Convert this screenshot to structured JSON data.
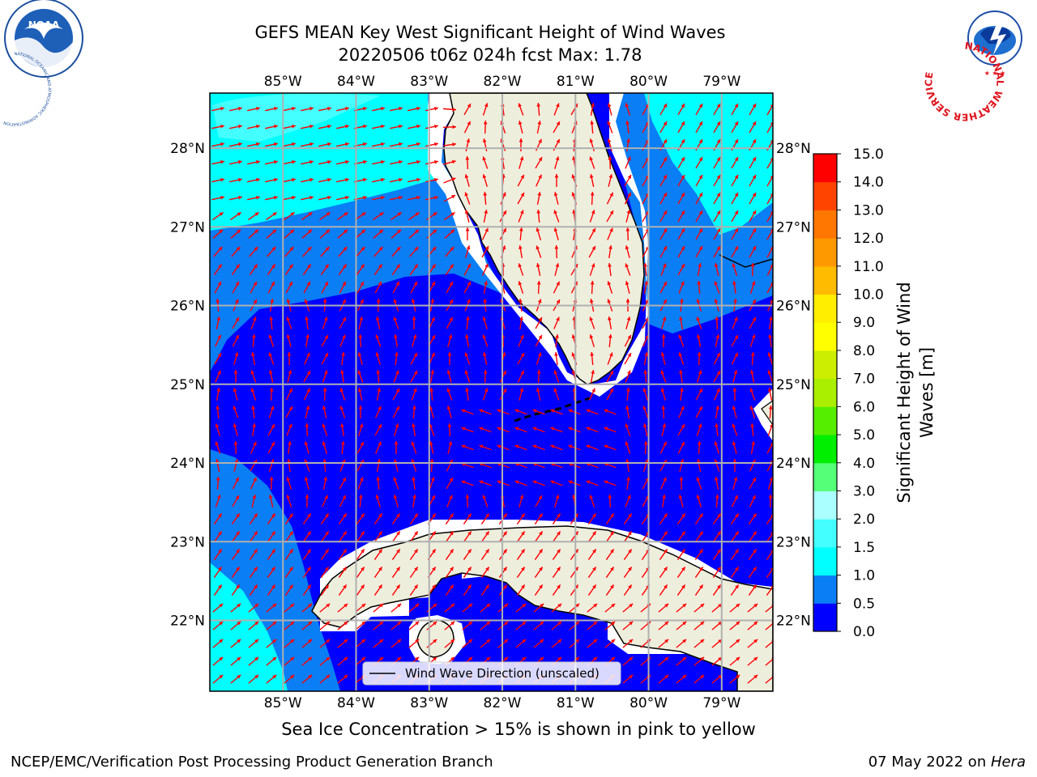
{
  "header": {
    "title_line1": "GEFS MEAN Key West Significant Height of Wind Waves",
    "title_line2": "20220506 t06z 024h fcst   Max: 1.78"
  },
  "logos": {
    "noaa_text": "NOAA",
    "noaa_ring": "NATIONAL OCEANIC AND ATMOSPHERIC ADMINISTRATION · U.S. DEPARTMENT OF COMMERCE ·",
    "nws_ring": "NATIONAL WEATHER SERVICE"
  },
  "map": {
    "lon_range": [
      -86.0,
      -78.3
    ],
    "lat_range": [
      21.1,
      28.7
    ],
    "lon_ticks": [
      "85°W",
      "84°W",
      "83°W",
      "82°W",
      "81°W",
      "80°W",
      "79°W"
    ],
    "lon_values": [
      -85,
      -84,
      -83,
      -82,
      -81,
      -80,
      -79
    ],
    "lat_ticks": [
      "22°N",
      "23°N",
      "24°N",
      "25°N",
      "26°N",
      "27°N",
      "28°N"
    ],
    "lat_values": [
      22,
      23,
      24,
      25,
      26,
      27,
      28
    ],
    "gridlines": true,
    "colors": {
      "ocean_0_0_5": "#0000ff",
      "ocean_0_5_1_0": "#0a7ef5",
      "ocean_1_0_1_5": "#00ffff",
      "land": "#eeeedd",
      "arrows": "#ff0000"
    },
    "legend": {
      "label": "Wind Wave Direction (unscaled)",
      "placement": "bottom-center"
    }
  },
  "colorbar": {
    "title_line1": "Significant Height of Wind",
    "title_line2": "Waves [m]",
    "tick_labels": [
      "0.0",
      "0.5",
      "1.0",
      "1.5",
      "2.0",
      "3.0",
      "4.0",
      "5.0",
      "6.0",
      "7.0",
      "8.0",
      "9.0",
      "10.0",
      "11.0",
      "12.0",
      "13.0",
      "14.0",
      "15.0"
    ],
    "colors": [
      "#0000ff",
      "#0a7ef5",
      "#00ffff",
      "#44ffff",
      "#aaffff",
      "#55ff77",
      "#00ee00",
      "#55ee00",
      "#aaee00",
      "#ccee00",
      "#ffff00",
      "#ffee00",
      "#ffbb00",
      "#ff9900",
      "#ff7700",
      "#ff4400",
      "#ff0000"
    ]
  },
  "note": "Sea Ice Concentration > 15% is shown in pink to yellow",
  "footer": {
    "left": "NCEP/EMC/Verification Post Processing Product Generation Branch",
    "right_date": "07 May 2022 on ",
    "right_host": "Hera"
  }
}
